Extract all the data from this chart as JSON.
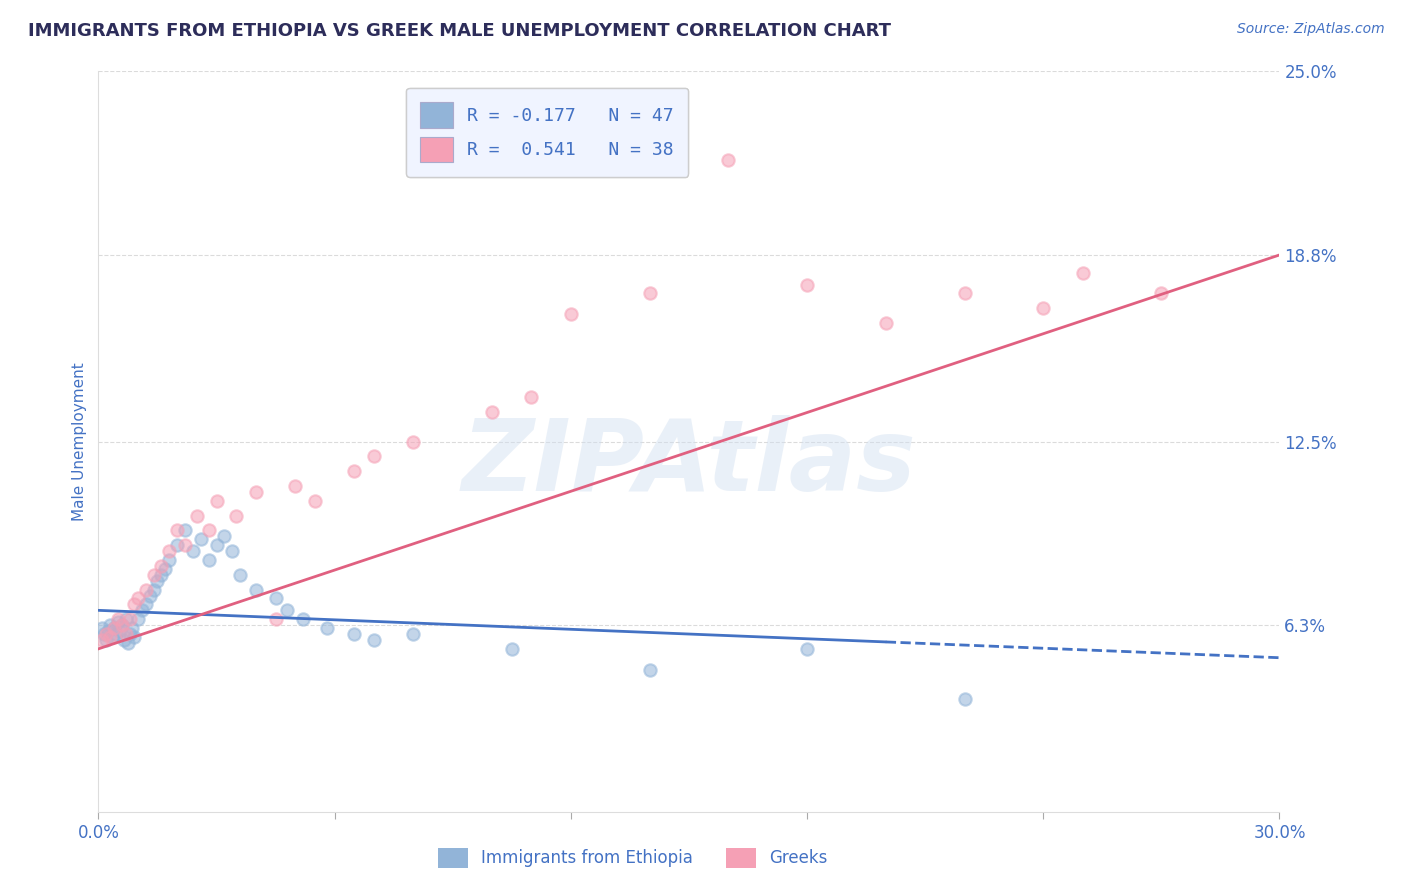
{
  "title": "IMMIGRANTS FROM ETHIOPIA VS GREEK MALE UNEMPLOYMENT CORRELATION CHART",
  "source": "Source: ZipAtlas.com",
  "ylabel": "Male Unemployment",
  "xlim": [
    0.0,
    30.0
  ],
  "ylim": [
    0.0,
    25.0
  ],
  "yticks": [
    6.3,
    12.5,
    18.8,
    25.0
  ],
  "ytick_labels": [
    "6.3%",
    "12.5%",
    "18.8%",
    "25.0%"
  ],
  "legend_line1": "R = -0.177   N = 47",
  "legend_line2": "R =  0.541   N = 38",
  "legend_label_blue": "Immigrants from Ethiopia",
  "legend_label_pink": "Greeks",
  "blue_scatter": [
    [
      0.1,
      6.2
    ],
    [
      0.15,
      6.0
    ],
    [
      0.2,
      5.8
    ],
    [
      0.25,
      6.1
    ],
    [
      0.3,
      6.3
    ],
    [
      0.35,
      5.9
    ],
    [
      0.4,
      6.2
    ],
    [
      0.45,
      6.0
    ],
    [
      0.5,
      6.4
    ],
    [
      0.55,
      6.1
    ],
    [
      0.6,
      6.3
    ],
    [
      0.65,
      5.8
    ],
    [
      0.7,
      6.5
    ],
    [
      0.75,
      5.7
    ],
    [
      0.8,
      6.0
    ],
    [
      0.85,
      6.2
    ],
    [
      0.9,
      5.9
    ],
    [
      1.0,
      6.5
    ],
    [
      1.1,
      6.8
    ],
    [
      1.2,
      7.0
    ],
    [
      1.3,
      7.3
    ],
    [
      1.4,
      7.5
    ],
    [
      1.5,
      7.8
    ],
    [
      1.6,
      8.0
    ],
    [
      1.7,
      8.2
    ],
    [
      1.8,
      8.5
    ],
    [
      2.0,
      9.0
    ],
    [
      2.2,
      9.5
    ],
    [
      2.4,
      8.8
    ],
    [
      2.6,
      9.2
    ],
    [
      2.8,
      8.5
    ],
    [
      3.0,
      9.0
    ],
    [
      3.2,
      9.3
    ],
    [
      3.4,
      8.8
    ],
    [
      3.6,
      8.0
    ],
    [
      4.0,
      7.5
    ],
    [
      4.5,
      7.2
    ],
    [
      4.8,
      6.8
    ],
    [
      5.2,
      6.5
    ],
    [
      5.8,
      6.2
    ],
    [
      6.5,
      6.0
    ],
    [
      7.0,
      5.8
    ],
    [
      8.0,
      6.0
    ],
    [
      10.5,
      5.5
    ],
    [
      14.0,
      4.8
    ],
    [
      18.0,
      5.5
    ],
    [
      22.0,
      3.8
    ]
  ],
  "pink_scatter": [
    [
      0.1,
      5.8
    ],
    [
      0.2,
      6.0
    ],
    [
      0.3,
      5.9
    ],
    [
      0.4,
      6.2
    ],
    [
      0.5,
      6.5
    ],
    [
      0.6,
      6.3
    ],
    [
      0.7,
      6.0
    ],
    [
      0.8,
      6.5
    ],
    [
      0.9,
      7.0
    ],
    [
      1.0,
      7.2
    ],
    [
      1.2,
      7.5
    ],
    [
      1.4,
      8.0
    ],
    [
      1.6,
      8.3
    ],
    [
      1.8,
      8.8
    ],
    [
      2.0,
      9.5
    ],
    [
      2.2,
      9.0
    ],
    [
      2.5,
      10.0
    ],
    [
      2.8,
      9.5
    ],
    [
      3.0,
      10.5
    ],
    [
      3.5,
      10.0
    ],
    [
      4.0,
      10.8
    ],
    [
      4.5,
      6.5
    ],
    [
      5.0,
      11.0
    ],
    [
      5.5,
      10.5
    ],
    [
      6.5,
      11.5
    ],
    [
      7.0,
      12.0
    ],
    [
      8.0,
      12.5
    ],
    [
      10.0,
      13.5
    ],
    [
      11.0,
      14.0
    ],
    [
      12.0,
      16.8
    ],
    [
      14.0,
      17.5
    ],
    [
      16.0,
      22.0
    ],
    [
      18.0,
      17.8
    ],
    [
      20.0,
      16.5
    ],
    [
      22.0,
      17.5
    ],
    [
      24.0,
      17.0
    ],
    [
      25.0,
      18.2
    ],
    [
      27.0,
      17.5
    ]
  ],
  "blue_line_x0": 0.0,
  "blue_line_x1": 30.0,
  "blue_line_y0": 6.8,
  "blue_line_y1": 5.2,
  "blue_solid_end": 20.0,
  "pink_line_x0": 0.0,
  "pink_line_x1": 30.0,
  "pink_line_y0": 5.5,
  "pink_line_y1": 18.8,
  "watermark": "ZIPAtlas",
  "bg_color": "#ffffff",
  "blue_scatter_color": "#92b4d8",
  "pink_scatter_color": "#f5a0b5",
  "blue_line_color": "#4472c4",
  "pink_line_color": "#e06080",
  "title_color": "#2d2d5a",
  "axis_color": "#4472c4",
  "grid_color": "#cccccc",
  "watermark_color": "#d0dff0"
}
